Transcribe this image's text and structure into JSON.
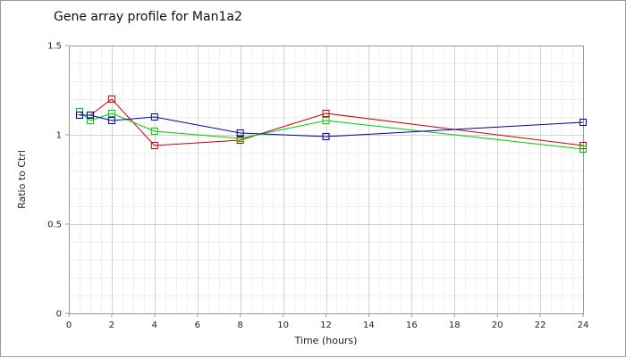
{
  "chart_data": {
    "type": "line",
    "title": "Gene array profile for Man1a2",
    "xlabel": "Time (hours)",
    "ylabel": "Ratio to Ctrl",
    "xlim": [
      0,
      24
    ],
    "ylim": [
      0,
      1.5
    ],
    "xticks": [
      0,
      2,
      4,
      6,
      8,
      10,
      12,
      14,
      16,
      18,
      20,
      22,
      24
    ],
    "yticks": [
      0,
      0.5,
      1,
      1.5
    ],
    "ytick_labels": [
      "0",
      "0.5",
      "1",
      "1.5"
    ],
    "grid": true,
    "legend": "none",
    "series": [
      {
        "color": "#cc0000",
        "x": [
          0.5,
          1,
          2,
          4,
          8,
          12,
          24
        ],
        "y": [
          1.11,
          1.11,
          1.2,
          0.94,
          0.97,
          1.12,
          0.94
        ]
      },
      {
        "color": "#00cc00",
        "x": [
          0.5,
          1,
          2,
          4,
          8,
          12,
          24
        ],
        "y": [
          1.13,
          1.08,
          1.12,
          1.02,
          0.98,
          1.08,
          0.92
        ]
      },
      {
        "color": "#0000aa",
        "x": [
          0.5,
          1,
          2,
          4,
          8,
          12,
          24
        ],
        "y": [
          1.11,
          1.11,
          1.08,
          1.1,
          1.01,
          0.99,
          1.07
        ]
      }
    ]
  }
}
